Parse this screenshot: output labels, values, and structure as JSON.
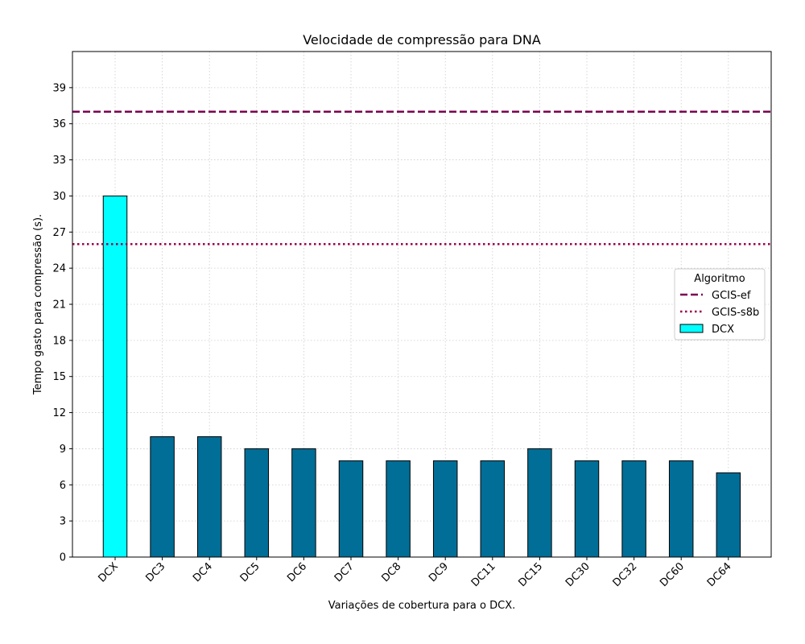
{
  "chart_data": {
    "type": "bar",
    "title": "Velocidade de compressão para  DNA",
    "xlabel": "Variações de cobertura para o DCX.",
    "ylabel": "Tempo gasto para compressão (s).",
    "categories": [
      "DCX",
      "DC3",
      "DC4",
      "DC5",
      "DC6",
      "DC7",
      "DC8",
      "DC9",
      "DC11",
      "DC15",
      "DC30",
      "DC32",
      "DC60",
      "DC64"
    ],
    "series": [
      {
        "name": "DCX",
        "values": [
          30,
          10,
          10,
          9,
          9,
          8,
          8,
          8,
          8,
          9,
          8,
          8,
          8,
          7
        ]
      }
    ],
    "reference_lines": [
      {
        "name": "GCIS-ef",
        "value": 37,
        "style": "dashed",
        "color": "#7a0050"
      },
      {
        "name": "GCIS-s8b",
        "value": 26,
        "style": "dotted",
        "color": "#99004d"
      }
    ],
    "ylim": [
      0,
      42
    ],
    "yticks": [
      0,
      3,
      6,
      9,
      12,
      15,
      18,
      21,
      24,
      27,
      30,
      33,
      36,
      39
    ],
    "grid": true,
    "legend": {
      "title": "Algoritmo",
      "placement": "center-right"
    },
    "colors": {
      "highlight_bar": "#00ffff",
      "bar": "#006e96",
      "edge": "#000000",
      "grid": "#cccccc"
    }
  }
}
